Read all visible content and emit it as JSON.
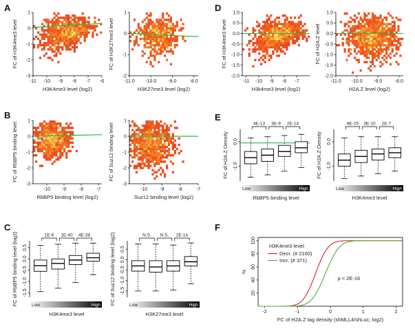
{
  "figure": {
    "panel_letters": [
      "A",
      "B",
      "C",
      "D",
      "E",
      "F"
    ]
  },
  "colors": {
    "fit_line": "#2db34a",
    "box_stroke": "#000000",
    "heat_low": "#e8231d",
    "heat_mid": "#f47b20",
    "heat_high": "#fff46a",
    "decr": "#e0202a",
    "incr": "#4caf2d"
  },
  "chart_data": [
    {
      "id": "A1",
      "panel": "A",
      "type": "heatmap",
      "xlabel": "H3K4me3 level (log2)",
      "ylabel": "FC of H3K4me3 level",
      "xlim": [
        -11,
        -6
      ],
      "ylim": [
        -3,
        1
      ],
      "xticks": [
        -11,
        -10,
        -9,
        -8,
        -7,
        -6
      ],
      "yticks": [
        -3,
        -2,
        -1,
        0,
        1
      ],
      "xtick_labels": [
        "-11",
        "-10",
        "-9",
        "-8",
        "-7",
        "-6"
      ],
      "ytick_labels": [
        "-3",
        "-2",
        "-1",
        "0",
        "1"
      ],
      "fit_line": [
        [
          -11,
          0.05
        ],
        [
          -6,
          0.3
        ]
      ],
      "density": {
        "center": [
          -8.6,
          -0.1
        ],
        "spread": [
          0.9,
          0.6
        ],
        "shape": "triangle-up",
        "n": 900
      }
    },
    {
      "id": "A2",
      "panel": "A",
      "type": "heatmap",
      "xlabel": "H3K27me3 level (log2)",
      "ylabel": "FC of H3K27me3 level",
      "xlim": [
        -11,
        -7.8
      ],
      "ylim": [
        -2,
        1
      ],
      "xticks": [
        -11,
        -10,
        -9,
        -8
      ],
      "yticks": [
        -2,
        -1,
        0,
        1
      ],
      "xtick_labels": [
        "-11.0",
        "-10.0",
        "-9.0",
        "-8.0"
      ],
      "ytick_labels": [
        "-2",
        "-1",
        "0",
        "1"
      ],
      "fit_line": [
        [
          -11,
          0.0
        ],
        [
          -7.8,
          -0.15
        ]
      ],
      "density": {
        "center": [
          -9.7,
          -0.1
        ],
        "spread": [
          0.5,
          0.5
        ],
        "shape": "blob",
        "n": 500
      }
    },
    {
      "id": "B1",
      "panel": "B",
      "type": "heatmap",
      "xlabel": "RbBP5 binding level (log2)",
      "ylabel": "FC of RbBP5 binding level",
      "xlim": [
        -10.8,
        -6.8
      ],
      "ylim": [
        -3,
        1
      ],
      "xticks": [
        -10,
        -9,
        -8,
        -7
      ],
      "yticks": [
        -3,
        -2,
        -1,
        0,
        1
      ],
      "xtick_labels": [
        "-10",
        "-9",
        "-8",
        "-7"
      ],
      "ytick_labels": [
        "-3",
        "-2",
        "-1",
        "0",
        "1"
      ],
      "fit_line": [
        [
          -10.8,
          0.0
        ],
        [
          -6.8,
          0.1
        ]
      ],
      "density": {
        "center": [
          -9.7,
          -0.2
        ],
        "spread": [
          0.5,
          0.55
        ],
        "shape": "blob",
        "n": 750
      }
    },
    {
      "id": "B2",
      "panel": "B",
      "type": "heatmap",
      "xlabel": "Suz12 binding level (log2)",
      "ylabel": "FC of Suz12 binding level",
      "xlim": [
        -10.8,
        -7
      ],
      "ylim": [
        -3,
        1
      ],
      "xticks": [
        -10,
        -9,
        -8,
        -7
      ],
      "yticks": [
        -3,
        -2,
        -1,
        0,
        1
      ],
      "xtick_labels": [
        "-10",
        "-9",
        "-8",
        "-7"
      ],
      "ytick_labels": [
        "-3",
        "-2",
        "-1",
        "0",
        "1"
      ],
      "fit_line": [
        [
          -10.8,
          0.0
        ],
        [
          -7,
          0.0
        ]
      ],
      "density": {
        "center": [
          -9.6,
          -0.5
        ],
        "spread": [
          0.6,
          0.75
        ],
        "shape": "blob",
        "n": 900
      }
    },
    {
      "id": "C1",
      "panel": "C",
      "type": "box",
      "xlabel": "H3K4me3 level",
      "ylabel": "FC of RbBP5 binding level (log2)",
      "ylim": [
        -1.7,
        0.8
      ],
      "yticks": [
        -1.5,
        -1.0,
        -0.5,
        0.0,
        0.5
      ],
      "ytick_labels": [
        "-1.5",
        "-1.0",
        "-0.5",
        "0.0",
        "0.5"
      ],
      "gradient_labels": {
        "low": "Low",
        "high": "High"
      },
      "boxes": [
        {
          "q1": -0.55,
          "median": -0.3,
          "q3": -0.05,
          "lo": -1.45,
          "hi": 0.6
        },
        {
          "q1": -0.45,
          "median": -0.2,
          "q3": 0.0,
          "lo": -1.3,
          "hi": 0.65
        },
        {
          "q1": -0.25,
          "median": -0.05,
          "q3": 0.15,
          "lo": -1.05,
          "hi": 0.7
        },
        {
          "q1": -0.1,
          "median": 0.05,
          "q3": 0.25,
          "lo": -0.7,
          "hi": 0.7
        }
      ],
      "brackets": [
        {
          "from": 0,
          "to": 1,
          "label": "1E-6",
          "level": 1
        },
        {
          "from": 1,
          "to": 2,
          "label": "1E-40",
          "level": 1
        },
        {
          "from": 2,
          "to": 3,
          "label": "4E-38",
          "level": 0
        }
      ]
    },
    {
      "id": "C2",
      "panel": "C",
      "type": "box",
      "xlabel": "H3K27me3 level",
      "ylabel": "FC of Suz12 binding level (log2)",
      "ylim": [
        -1.8,
        0.9
      ],
      "yticks": [
        -1.5,
        -1.0,
        -0.5,
        0.0,
        0.5
      ],
      "ytick_labels": [
        "-1.5",
        "-1.0",
        "-0.5",
        "0.0",
        "0.5"
      ],
      "gradient_labels": {
        "low": "Low",
        "high": "High"
      },
      "boxes": [
        {
          "q1": -0.55,
          "median": -0.3,
          "q3": -0.05,
          "lo": -1.5,
          "hi": 0.75
        },
        {
          "q1": -0.6,
          "median": -0.35,
          "q3": -0.05,
          "lo": -1.5,
          "hi": 0.75
        },
        {
          "q1": -0.55,
          "median": -0.3,
          "q3": -0.05,
          "lo": -1.45,
          "hi": 0.7
        },
        {
          "q1": -0.3,
          "median": -0.1,
          "q3": 0.15,
          "lo": -1.15,
          "hi": 0.8
        }
      ],
      "brackets": [
        {
          "from": 0,
          "to": 1,
          "label": "N.S.",
          "level": 1
        },
        {
          "from": 1,
          "to": 2,
          "label": "N.S.",
          "level": 1
        },
        {
          "from": 2,
          "to": 3,
          "label": "2E-14",
          "level": 1
        }
      ]
    },
    {
      "id": "D1",
      "panel": "D",
      "type": "heatmap",
      "xlabel": "H3k4me3 level (log2)",
      "ylabel": "FC of H3K4me3 level",
      "xlim": [
        -11.3,
        -6
      ],
      "ylim": [
        -2,
        1
      ],
      "xticks": [
        -11,
        -10,
        -9,
        -8,
        -7
      ],
      "yticks": [
        -2,
        -1.5,
        -1,
        -0.5,
        0,
        0.5,
        1
      ],
      "xtick_labels": [
        "-11",
        "-10",
        "-9",
        "-8",
        "-7"
      ],
      "ytick_labels": [
        "-2.0",
        "-1.5",
        "-1.0",
        "-0.5",
        "0.0",
        "0.5",
        "1.0"
      ],
      "fit_line": [
        [
          -11.3,
          0.0
        ],
        [
          -6,
          0.0
        ]
      ],
      "density": {
        "center": [
          -8.5,
          0.0
        ],
        "spread": [
          1.0,
          0.45
        ],
        "shape": "triangle-up",
        "n": 1000
      }
    },
    {
      "id": "D2",
      "panel": "D",
      "type": "heatmap",
      "xlabel": "H2A.Z level (log2)",
      "ylabel": "FC of H2A.Z level",
      "xlim": [
        -11,
        -7.8
      ],
      "ylim": [
        -2,
        1
      ],
      "xticks": [
        -11,
        -10,
        -9,
        -8
      ],
      "yticks": [
        -2,
        -1.5,
        -1,
        -0.5,
        0,
        0.5,
        1
      ],
      "xtick_labels": [
        "-11.0",
        "-10.0",
        "-9.0",
        "-8.0"
      ],
      "ytick_labels": [
        "-2.0",
        "-1.5",
        "-1.0",
        "-0.5",
        "0.0",
        "0.5",
        "1.0"
      ],
      "fit_line": [
        [
          -11,
          0.0
        ],
        [
          -7.8,
          0.0
        ]
      ],
      "density": {
        "center": [
          -9.3,
          -0.2
        ],
        "spread": [
          0.6,
          0.5
        ],
        "shape": "blob",
        "n": 1000
      }
    },
    {
      "id": "E1",
      "panel": "E",
      "type": "box",
      "xlabel": "RbBP5 binding level",
      "ylabel": "FC of H2A.Z Density",
      "ylim": [
        -1.6,
        0.5
      ],
      "yticks": [
        -1.0,
        0.0
      ],
      "ytick_labels": [
        "-1.0",
        "0.0"
      ],
      "gradient_labels": {
        "low": "Low",
        "high": "High"
      },
      "boxes": [
        {
          "q1": -0.9,
          "median": -0.65,
          "q3": -0.4,
          "lo": -1.45,
          "hi": 0.15
        },
        {
          "q1": -0.8,
          "median": -0.55,
          "q3": -0.3,
          "lo": -1.35,
          "hi": 0.2
        },
        {
          "q1": -0.6,
          "median": -0.4,
          "q3": -0.15,
          "lo": -1.2,
          "hi": 0.25
        },
        {
          "q1": -0.45,
          "median": -0.25,
          "q3": 0.0,
          "lo": -1.05,
          "hi": 0.3
        }
      ],
      "fit_line_y": -0.05,
      "brackets": [
        {
          "from": 0,
          "to": 1,
          "label": "4E-13",
          "level": 1
        },
        {
          "from": 1,
          "to": 2,
          "label": "3E-9",
          "level": 1
        },
        {
          "from": 2,
          "to": 3,
          "label": "2E-14",
          "level": 1
        }
      ]
    },
    {
      "id": "E2",
      "panel": "E",
      "type": "box",
      "xlabel": "H3K4me3 level",
      "ylabel": "FC of H2A.Z Density",
      "ylim": [
        -1.6,
        0.5
      ],
      "yticks": [
        -1.0,
        0.0
      ],
      "ytick_labels": [
        "-1.0",
        "0.0"
      ],
      "gradient_labels": {
        "low": "Low",
        "high": "High"
      },
      "boxes": [
        {
          "q1": -1.0,
          "median": -0.75,
          "q3": -0.5,
          "lo": -1.5,
          "hi": 0.15
        },
        {
          "q1": -0.85,
          "median": -0.6,
          "q3": -0.35,
          "lo": -1.4,
          "hi": 0.2
        },
        {
          "q1": -0.75,
          "median": -0.5,
          "q3": -0.3,
          "lo": -1.3,
          "hi": 0.2
        },
        {
          "q1": -0.65,
          "median": -0.45,
          "q3": -0.25,
          "lo": -1.2,
          "hi": 0.2
        }
      ],
      "brackets": [
        {
          "from": 0,
          "to": 1,
          "label": "8E-25",
          "level": 1
        },
        {
          "from": 1,
          "to": 2,
          "label": "3E-10",
          "level": 1
        },
        {
          "from": 2,
          "to": 3,
          "label": "2E-7",
          "level": 1
        }
      ]
    },
    {
      "id": "F",
      "panel": "F",
      "type": "line",
      "title": "H3K4me3 level",
      "xlabel": "FC of H2A.Z tag density (shMLL4/shLuc; log2)",
      "ylabel": "%",
      "xlim": [
        -2.2,
        2.2
      ],
      "ylim": [
        0,
        105
      ],
      "xticks": [
        -2,
        -1,
        0,
        1,
        2
      ],
      "yticks": [
        20,
        40,
        60,
        80,
        100
      ],
      "xtick_labels": [
        "-2",
        "-1",
        "0",
        "1",
        "2"
      ],
      "ytick_labels": [
        "20",
        "40",
        "60",
        "80",
        "100"
      ],
      "annotation": "p < 2E-16",
      "series": [
        {
          "name": "Decr. (# 2160)",
          "color": "#e0202a",
          "mu": -0.45,
          "sigma": 0.3
        },
        {
          "name": "Incr. (# 371)",
          "color": "#4caf2d",
          "mu": -0.15,
          "sigma": 0.33
        }
      ]
    }
  ]
}
